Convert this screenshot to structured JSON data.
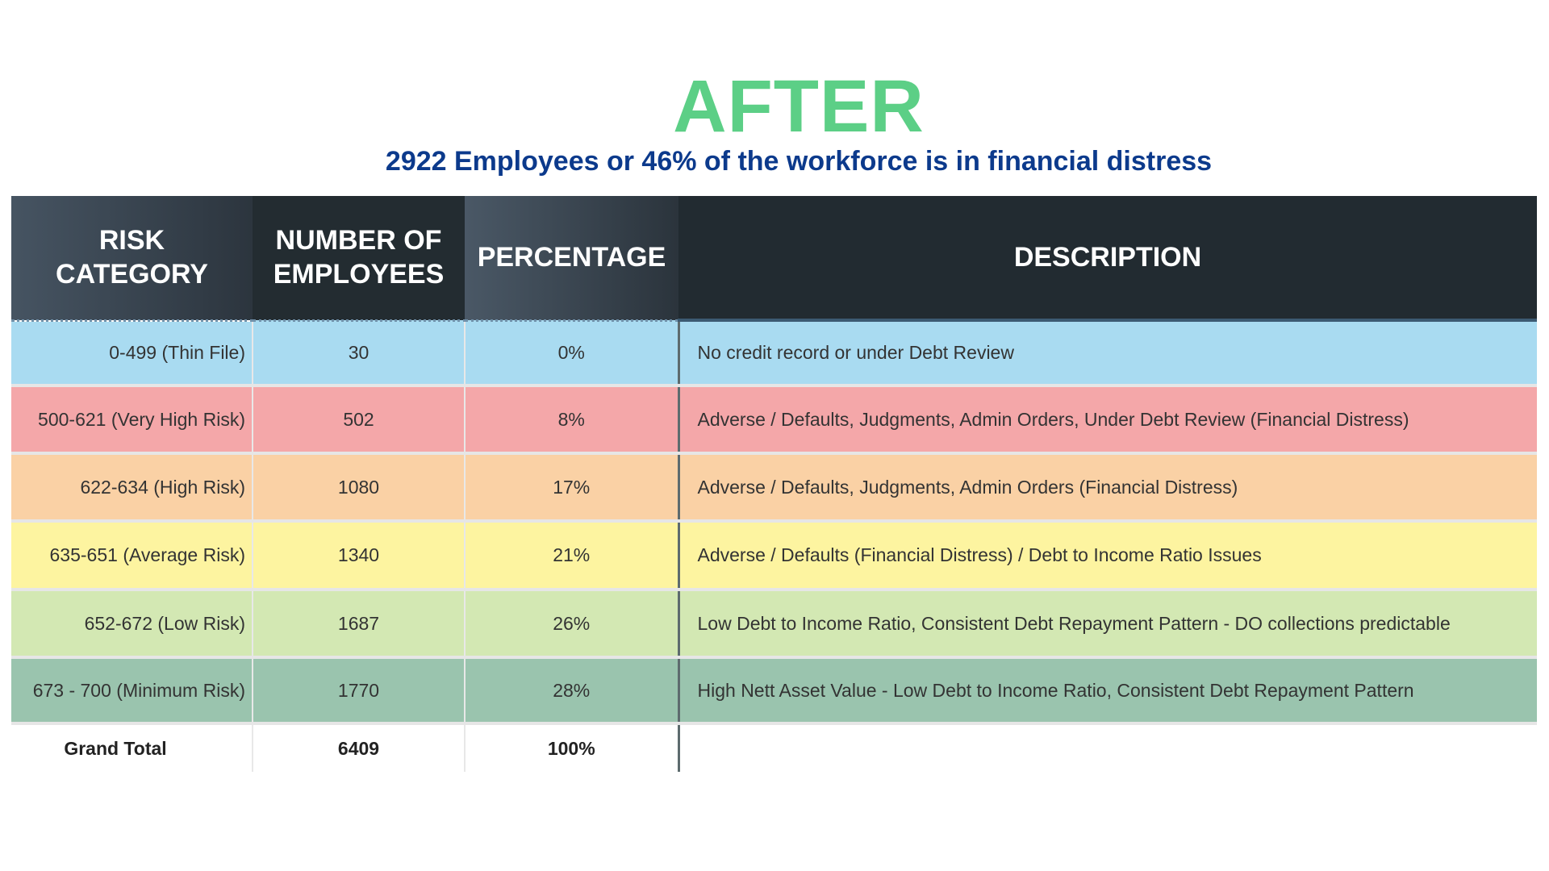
{
  "title": "AFTER",
  "subtitle": "2922 Employees or 46% of the workforce is in financial distress",
  "colors": {
    "title": "#5ccf86",
    "subtitle": "#0c3a8c",
    "header": "#232c31"
  },
  "table": {
    "headers": [
      "RISK CATEGORY",
      "NUMBER OF EMPLOYEES",
      "PERCENTAGE",
      "DESCRIPTION"
    ],
    "rows": [
      {
        "category": "0-499 (Thin File)",
        "employees": "30",
        "percentage": "0%",
        "description": "No credit record or under Debt Review",
        "color": "#a9dbf1"
      },
      {
        "category": "500-621 (Very High Risk)",
        "employees": "502",
        "percentage": "8%",
        "description": "Adverse / Defaults, Judgments, Admin Orders, Under Debt Review (Financial Distress)",
        "color": "#f4a7a9"
      },
      {
        "category": "622-634 (High Risk)",
        "employees": "1080",
        "percentage": "17%",
        "description": "Adverse / Defaults, Judgments, Admin Orders (Financial Distress)",
        "color": "#fad1a5"
      },
      {
        "category": "635-651 (Average Risk)",
        "employees": "1340",
        "percentage": "21%",
        "description": "Adverse / Defaults (Financial Distress) / Debt to Income Ratio Issues",
        "color": "#fdf4a0"
      },
      {
        "category": "652-672 (Low Risk)",
        "employees": "1687",
        "percentage": "26%",
        "description": "Low Debt to Income Ratio, Consistent Debt Repayment Pattern - DO collections predictable",
        "color": "#d3e8b3"
      },
      {
        "category": "673 - 700 (Minimum Risk)",
        "employees": "1770",
        "percentage": "28%",
        "description": "High Nett Asset Value - Low Debt to Income Ratio, Consistent Debt Repayment Pattern",
        "color": "#9ac4ae"
      }
    ],
    "total": {
      "label": "Grand Total",
      "employees": "6409",
      "percentage": "100%"
    }
  }
}
